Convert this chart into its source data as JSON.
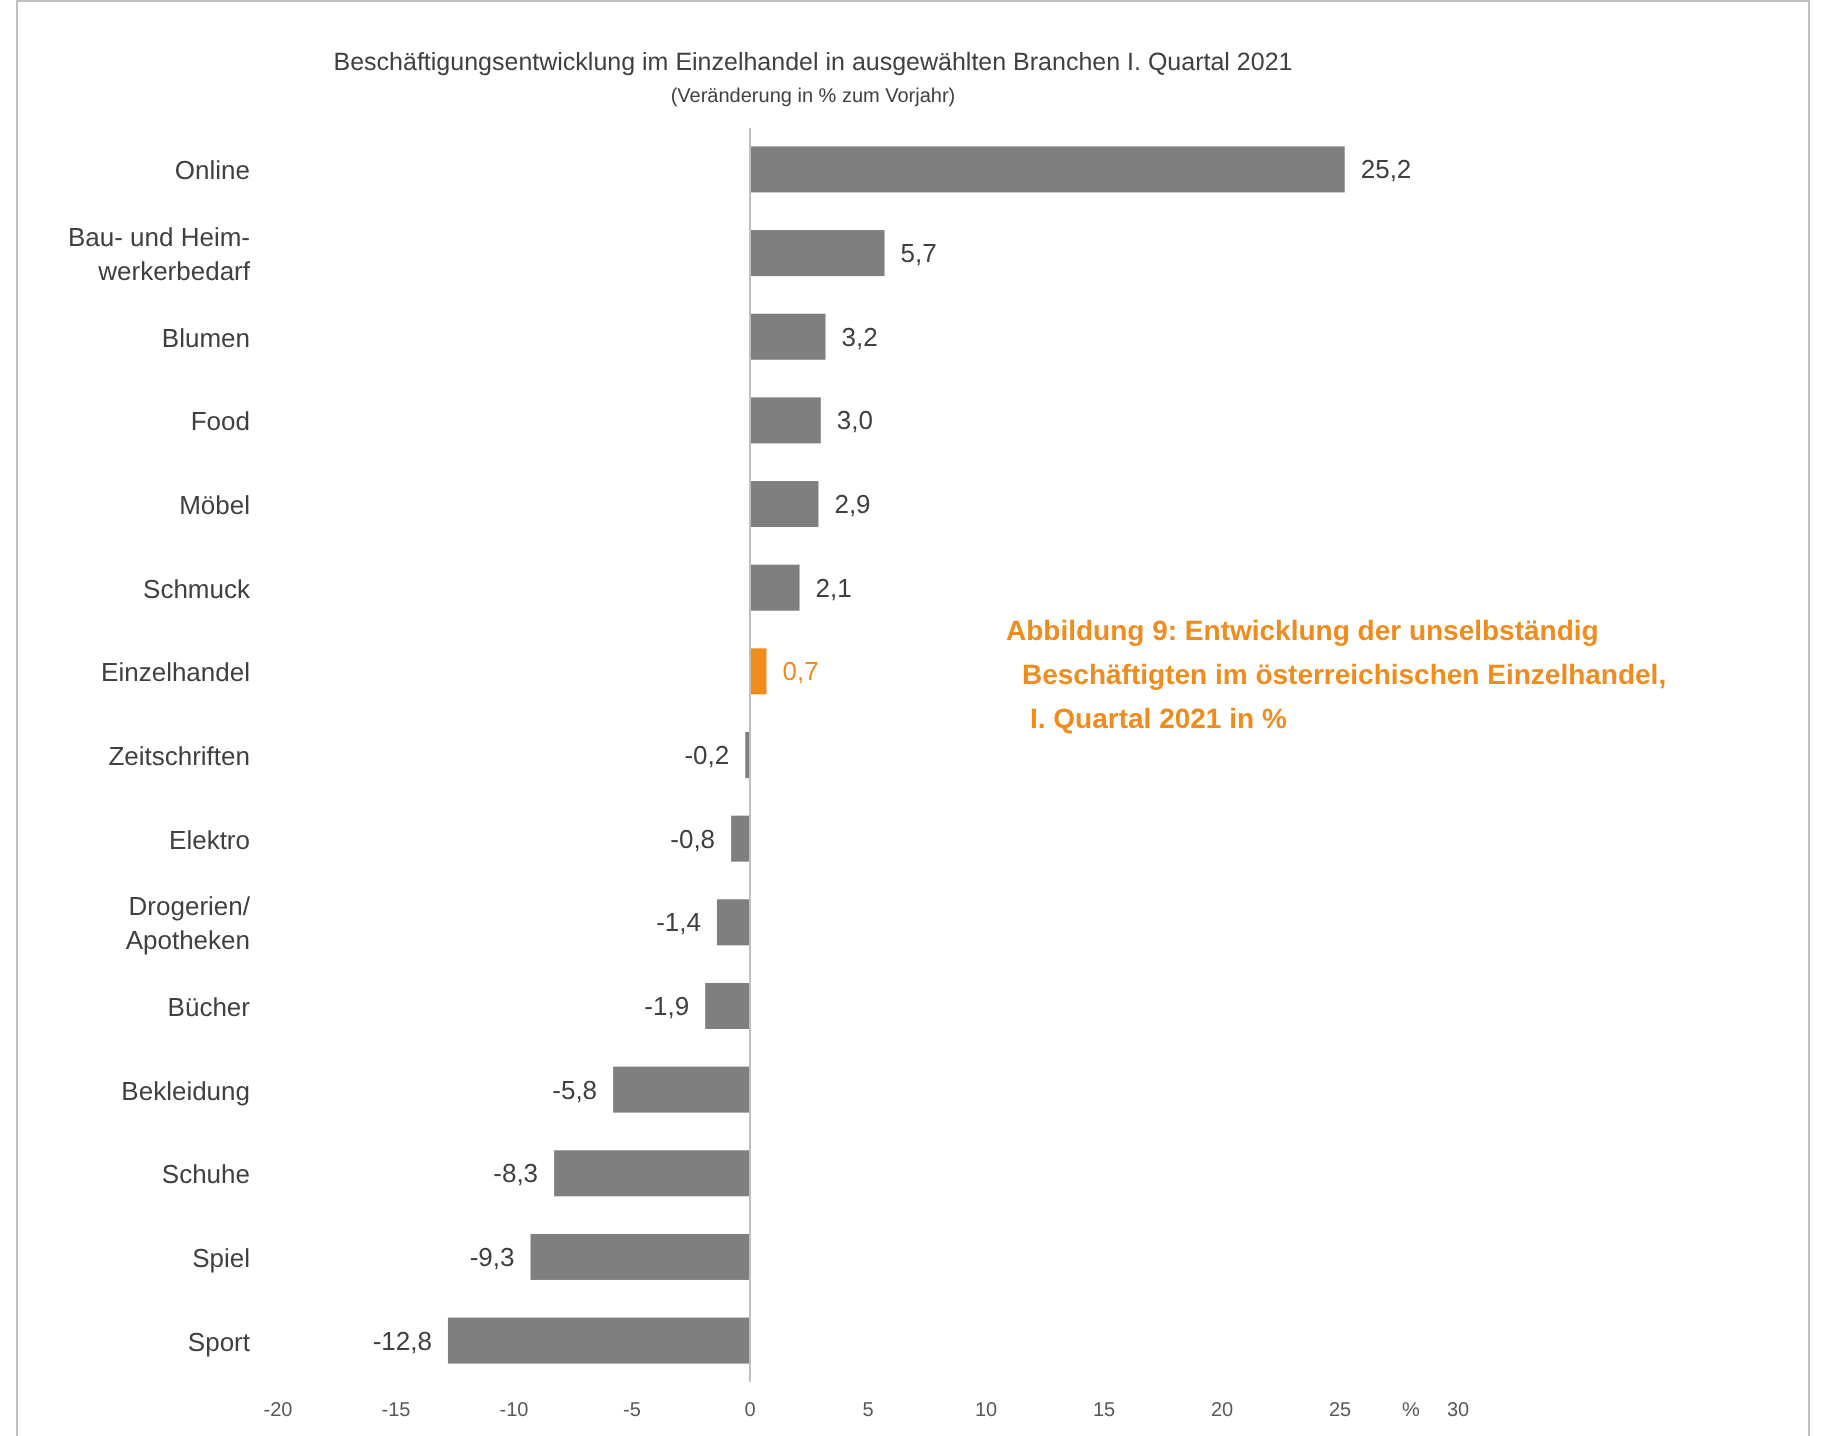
{
  "chart_data": {
    "type": "bar",
    "orientation": "horizontal",
    "title": "Beschäftigungsentwicklung im Einzelhandel in ausgewählten Branchen I. Quartal 2021",
    "subtitle": "(Veränderung in % zum Vorjahr)",
    "xlabel": "%",
    "categories": [
      "Online",
      "Bau- und Heim-\nwerkerbedarf",
      "Blumen",
      "Food",
      "Möbel",
      "Schmuck",
      "Einzelhandel",
      "Zeitschriften",
      "Elektro",
      "Drogerien/\nApotheken",
      "Bücher",
      "Bekleidung",
      "Schuhe",
      "Spiel",
      "Sport"
    ],
    "values": [
      25.2,
      5.7,
      3.2,
      3.0,
      2.9,
      2.1,
      0.7,
      -0.2,
      -0.8,
      -1.4,
      -1.9,
      -5.8,
      -8.3,
      -9.3,
      -12.8
    ],
    "value_labels": [
      "25,2",
      "5,7",
      "3,2",
      "3,0",
      "2,9",
      "2,1",
      "0,7",
      "-0,2",
      "-0,8",
      "-1,4",
      "-1,9",
      "-5,8",
      "-8,3",
      "-9,3",
      "-12,8"
    ],
    "colors": [
      "#7f7f7f",
      "#7f7f7f",
      "#7f7f7f",
      "#7f7f7f",
      "#7f7f7f",
      "#7f7f7f",
      "#f08c1e",
      "#7f7f7f",
      "#7f7f7f",
      "#7f7f7f",
      "#7f7f7f",
      "#7f7f7f",
      "#7f7f7f",
      "#7f7f7f",
      "#7f7f7f"
    ],
    "xlim": [
      -20,
      30
    ],
    "xticks": [
      -20,
      -15,
      -10,
      -5,
      0,
      5,
      10,
      15,
      20,
      25,
      30
    ],
    "annotations": [
      "Abbildung 9: Entwicklung der unselbständig Beschäftigten im österreichischen Einzelhandel, I. Quartal 2021 in %"
    ]
  }
}
